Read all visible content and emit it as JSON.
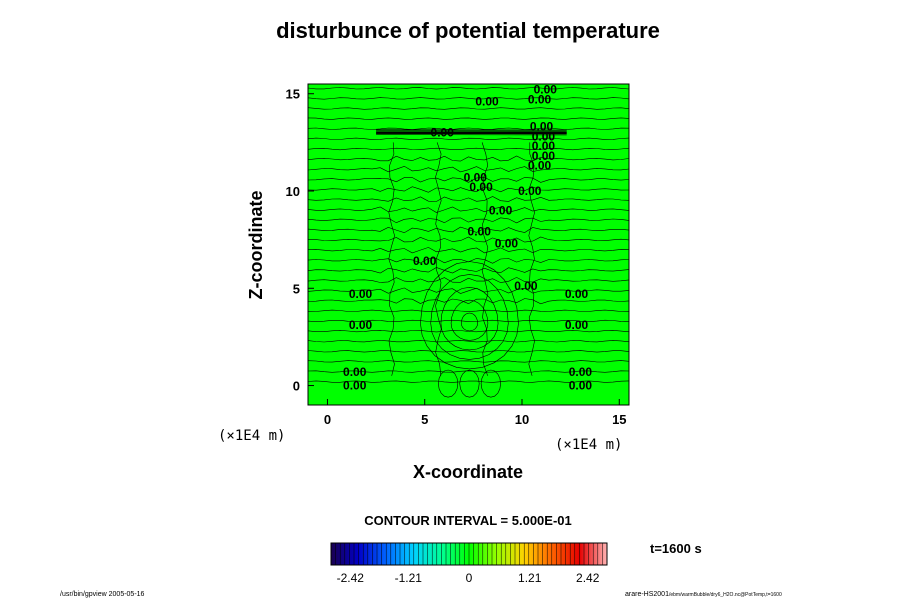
{
  "chart_data": {
    "type": "contour",
    "title": "disturbunce of potential temperature",
    "xlabel": "X-coordinate",
    "ylabel": "Z-coordinate",
    "x_unit": "(×1E4 m)",
    "z_unit": "(×1E4 m)",
    "xlim": [
      -1,
      15.5
    ],
    "ylim": [
      -1,
      15.5
    ],
    "x_ticks": [
      0,
      5,
      10,
      15
    ],
    "y_ticks": [
      0,
      5,
      10,
      15
    ],
    "fill_color": "#00ff00",
    "contour_interval_text": "CONTOUR INTERVAL = 5.000E-01",
    "time_text": "t=1600 s",
    "contour_labels": [
      {
        "x": 8.2,
        "z": 14.4,
        "text": "0.00"
      },
      {
        "x": 11.2,
        "z": 15.0,
        "text": "0.00"
      },
      {
        "x": 10.9,
        "z": 14.5,
        "text": "0.00"
      },
      {
        "x": 11.0,
        "z": 13.1,
        "text": "0.00"
      },
      {
        "x": 11.1,
        "z": 12.6,
        "text": "0.00"
      },
      {
        "x": 11.1,
        "z": 12.1,
        "text": "0.00"
      },
      {
        "x": 11.1,
        "z": 11.6,
        "text": "0.00"
      },
      {
        "x": 10.9,
        "z": 11.1,
        "text": "0.00"
      },
      {
        "x": 5.9,
        "z": 12.8,
        "text": "0.00"
      },
      {
        "x": 7.6,
        "z": 10.5,
        "text": "0.00"
      },
      {
        "x": 7.9,
        "z": 10.0,
        "text": "0.00"
      },
      {
        "x": 10.4,
        "z": 9.8,
        "text": "0.00"
      },
      {
        "x": 8.9,
        "z": 8.8,
        "text": "0.00"
      },
      {
        "x": 7.8,
        "z": 7.7,
        "text": "0.00"
      },
      {
        "x": 9.2,
        "z": 7.1,
        "text": "0.00"
      },
      {
        "x": 5.0,
        "z": 6.2,
        "text": "0.00"
      },
      {
        "x": 10.2,
        "z": 4.9,
        "text": "0.00"
      },
      {
        "x": 1.7,
        "z": 4.5,
        "text": "0.00"
      },
      {
        "x": 12.8,
        "z": 4.5,
        "text": "0.00"
      },
      {
        "x": 1.7,
        "z": 2.9,
        "text": "0.00"
      },
      {
        "x": 12.8,
        "z": 2.9,
        "text": "0.00"
      },
      {
        "x": 1.4,
        "z": 0.5,
        "text": "0.00"
      },
      {
        "x": 13.0,
        "z": 0.5,
        "text": "0.00"
      },
      {
        "x": 1.4,
        "z": -0.2,
        "text": "0.00"
      },
      {
        "x": 13.0,
        "z": -0.2,
        "text": "0.00"
      }
    ],
    "colorbar": {
      "ticks": [
        "-2.42",
        "-1.21",
        "0",
        "1.21",
        "2.42"
      ],
      "colors": [
        "#1a0050",
        "#0000c8",
        "#0064ff",
        "#00d2ff",
        "#00ff96",
        "#00ff00",
        "#96ff00",
        "#ffd200",
        "#ff6400",
        "#e60000",
        "#ffb4b4"
      ]
    }
  },
  "footer": {
    "left": "/usr/bin/gpview 2005-05-16",
    "right_main": "arare-HS2001",
    "right_small": "/ebm/warmBubble/dry6_H2O.nc@PotTemp,t=1600"
  }
}
